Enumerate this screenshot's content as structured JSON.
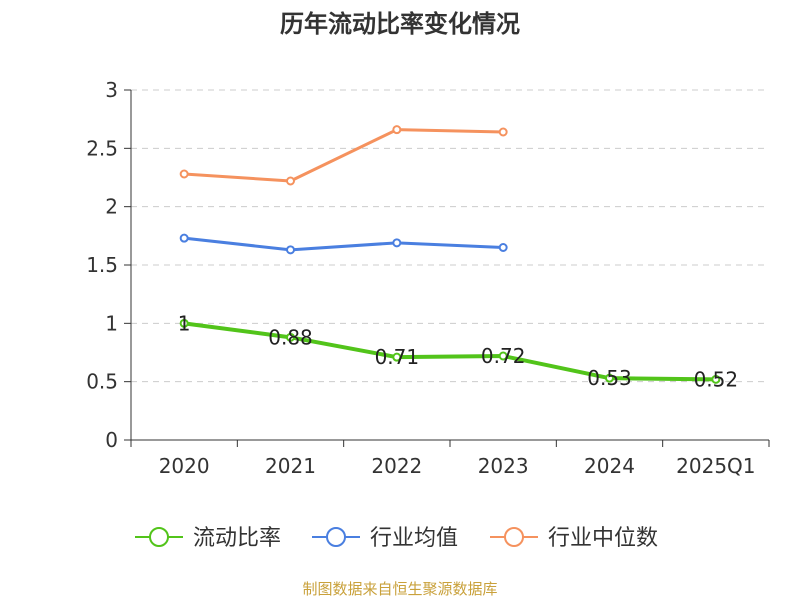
{
  "chart_data": {
    "type": "line",
    "title": "历年流动比率变化情况",
    "categories": [
      "2020",
      "2021",
      "2022",
      "2023",
      "2024",
      "2025Q1"
    ],
    "ylim": [
      0,
      3
    ],
    "yticks": [
      "0",
      "0.5",
      "1",
      "1.5",
      "2",
      "2.5",
      "3"
    ],
    "grid": true,
    "legend_position": "bottom",
    "series": [
      {
        "name": "流动比率",
        "color": "#52c41a",
        "values": [
          1,
          0.88,
          0.71,
          0.72,
          0.53,
          0.52
        ],
        "labels": [
          "1",
          "0.88",
          "0.71",
          "0.72",
          "0.53",
          "0.52"
        ]
      },
      {
        "name": "行业均值",
        "color": "#4a7fe0",
        "values": [
          1.73,
          1.63,
          1.69,
          1.65,
          null,
          null
        ]
      },
      {
        "name": "行业中位数",
        "color": "#f5925e",
        "values": [
          2.28,
          2.22,
          2.66,
          2.64,
          null,
          null
        ]
      }
    ]
  },
  "footer": {
    "source": "制图数据来自恒生聚源数据库"
  },
  "colors": {
    "axis": "#333333",
    "grid": "#cccccc",
    "source": "#c9a13b"
  }
}
